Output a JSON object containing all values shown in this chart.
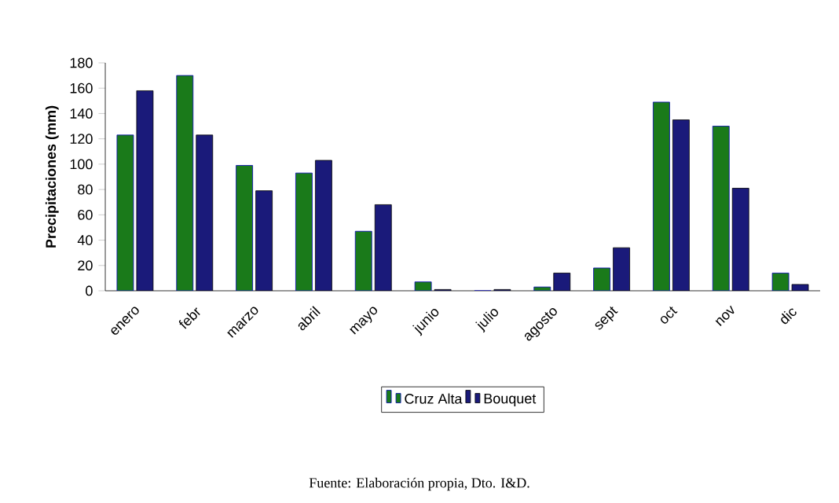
{
  "chart_data": {
    "type": "bar",
    "ylabel": "Precipitaciones (mm)",
    "categories": [
      "enero",
      "febr",
      "marzo",
      "abril",
      "mayo",
      "junio",
      "julio",
      "agosto",
      "sept",
      "oct",
      "nov",
      "dic"
    ],
    "series": [
      {
        "name": "Cruz Alta",
        "color": "#1a7a1a",
        "values": [
          123,
          170,
          99,
          93,
          47,
          7,
          0,
          3,
          18,
          149,
          130,
          14
        ]
      },
      {
        "name": "Bouquet",
        "color": "#1a1a7a",
        "values": [
          158,
          123,
          79,
          103,
          68,
          1,
          1,
          14,
          34,
          135,
          81,
          5
        ]
      }
    ],
    "ylim": [
      0,
      180
    ],
    "yticks": [
      0,
      20,
      40,
      60,
      80,
      100,
      120,
      140,
      160,
      180
    ],
    "legend": "bottom",
    "annotations": [
      "Fuente: Elaboración propia, Dto. I&D."
    ]
  }
}
